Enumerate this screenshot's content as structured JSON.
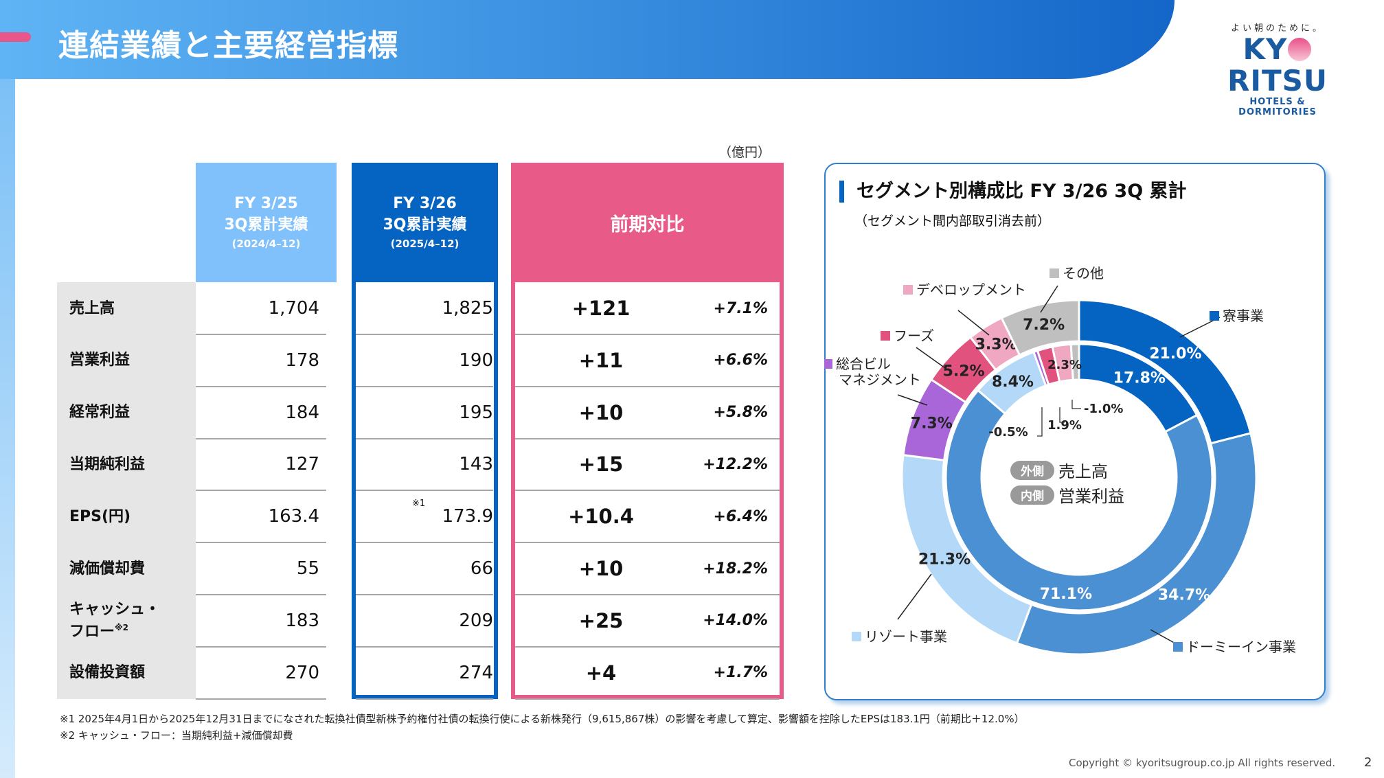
{
  "header": {
    "title": "連結業績と主要経営指標"
  },
  "logo": {
    "tagline": "よい朝のために。",
    "brand_left": "KY",
    "brand_right": "RITSU",
    "sub": "HOTELS & DORMITORIES"
  },
  "table": {
    "unit": "（億円）",
    "columns": [
      {
        "line1": "FY 3/25",
        "line2": "3Q累計実績",
        "line3": "(2024/4–12)"
      },
      {
        "line1": "FY 3/26",
        "line2": "3Q累計実績",
        "line3": "(2025/4–12)"
      },
      {
        "line1": "前期対比"
      }
    ],
    "rows": [
      {
        "label": "売上高",
        "prev": "1,704",
        "curr": "1,825",
        "diff": "+121",
        "pct": "+7.1%"
      },
      {
        "label": "営業利益",
        "prev": "178",
        "curr": "190",
        "diff": "+11",
        "pct": "+6.6%"
      },
      {
        "label": "経常利益",
        "prev": "184",
        "curr": "195",
        "diff": "+10",
        "pct": "+5.8%"
      },
      {
        "label": "当期純利益",
        "prev": "127",
        "curr": "143",
        "diff": "+15",
        "pct": "+12.2%"
      },
      {
        "label": "EPS(円)",
        "prev": "163.4",
        "curr": "173.9",
        "curr_note": "※1",
        "diff": "+10.4",
        "pct": "+6.4%"
      },
      {
        "label": "減価償却費",
        "prev": "55",
        "curr": "66",
        "diff": "+10",
        "pct": "+18.2%"
      },
      {
        "label": "キャッシュ・",
        "label2": "フロー",
        "label_note": "※2",
        "prev": "183",
        "curr": "209",
        "diff": "+25",
        "pct": "+14.0%"
      },
      {
        "label": "設備投資額",
        "prev": "270",
        "curr": "274",
        "diff": "+4",
        "pct": "+1.7%"
      }
    ]
  },
  "chart_data": {
    "type": "pie",
    "title": "セグメント別構成比 FY 3/26 3Q 累計",
    "subtitle": "（セグメント間内部取引消去前）",
    "center_legend": [
      {
        "badge": "外側",
        "label": "売上高"
      },
      {
        "badge": "内側",
        "label": "営業利益"
      }
    ],
    "categories": [
      "寮事業",
      "ドーミーイン事業",
      "リゾート事業",
      "総合ビルマネジメント",
      "フーズ",
      "デベロップメント",
      "その他"
    ],
    "category_lines": {
      "総合ビルマネジメント": [
        "総合ビル",
        "マネジメント"
      ]
    },
    "colors": [
      "#0563c1",
      "#4a90d2",
      "#b4d9f8",
      "#a866d8",
      "#e2527f",
      "#f0a8c2",
      "#bfbfbf"
    ],
    "series": [
      {
        "name": "売上高",
        "ring": "outer",
        "values": [
          21.0,
          34.7,
          21.3,
          7.3,
          5.2,
          3.3,
          7.2
        ]
      },
      {
        "name": "営業利益",
        "ring": "inner",
        "values": [
          17.8,
          71.1,
          8.4,
          -0.5,
          1.9,
          2.3,
          -1.0
        ]
      }
    ]
  },
  "footnotes": [
    "※1 2025年4月1日から2025年12月31日までになされた転換社債型新株予約権付社債の転換行使による新株発行（9,615,867株）の影響を考慮して算定、影響額を控除したEPSは183.1円（前期比＋12.0%）",
    "※2 キャッシュ・フロー：当期純利益+減価償却費"
  ],
  "copyright": "Copyright © kyoritsugroup.co.jp All rights reserved.",
  "page_number": "2"
}
